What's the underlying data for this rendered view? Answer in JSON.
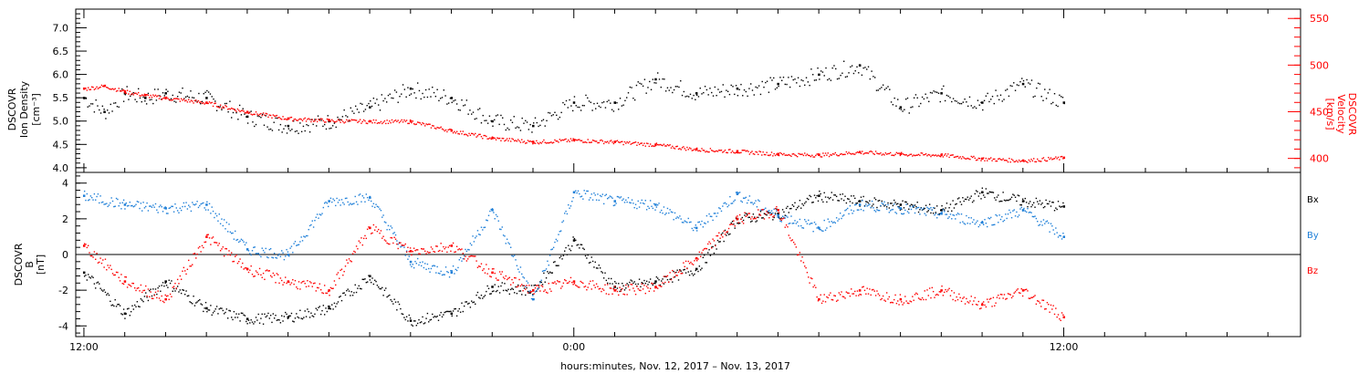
{
  "chart_data": [
    {
      "type": "scatter",
      "panel": "top",
      "ylabel_left": [
        "DSCOVR",
        "Ion Density",
        "[cm⁻³]"
      ],
      "ylabel_right": [
        "DSCOVR",
        "Velocity",
        "[km/s]"
      ],
      "ylim_left": [
        3.9,
        7.4
      ],
      "ylim_right": [
        385,
        560
      ],
      "yticks_left": [
        "4.0",
        "4.5",
        "5.0",
        "5.5",
        "6.0",
        "6.5",
        "7.0"
      ],
      "yticks_right": [
        "400",
        "450",
        "500",
        "550"
      ],
      "right_axis_color": "#ff0000",
      "series": [
        {
          "name": "density",
          "axis": "left",
          "color": "#000000",
          "hours": [
            0,
            0.5,
            1,
            1.5,
            2,
            3,
            4,
            5,
            6,
            7,
            8,
            9,
            10,
            11,
            12,
            13,
            14,
            15,
            16,
            17,
            18,
            19,
            20,
            21,
            22,
            23,
            24
          ],
          "values": [
            5.5,
            5.2,
            5.6,
            5.5,
            5.6,
            5.5,
            5.1,
            4.9,
            5.0,
            5.3,
            5.7,
            5.5,
            5.0,
            4.9,
            5.4,
            5.4,
            5.9,
            5.6,
            5.7,
            5.8,
            6.0,
            6.2,
            5.3,
            5.6,
            5.4,
            5.8,
            5.4
          ]
        },
        {
          "name": "velocity",
          "axis": "right",
          "color": "#ff0000",
          "hours": [
            0,
            0.5,
            1,
            1.5,
            2,
            3,
            4,
            5,
            6,
            7,
            8,
            9,
            10,
            11,
            12,
            13,
            14,
            15,
            16,
            17,
            18,
            19,
            20,
            21,
            22,
            23,
            24
          ],
          "values": [
            475,
            478,
            472,
            468,
            465,
            460,
            450,
            443,
            441,
            440,
            440,
            430,
            422,
            418,
            420,
            418,
            415,
            410,
            408,
            405,
            404,
            407,
            405,
            404,
            400,
            398,
            401
          ]
        }
      ]
    },
    {
      "type": "scatter",
      "panel": "bottom",
      "ylabel_left": [
        "DSCOVR",
        "B",
        "[nT]"
      ],
      "ylim": [
        -4.6,
        4.6
      ],
      "yticks": [
        "-4",
        "-2",
        "0",
        "2",
        "4"
      ],
      "zero_line": true,
      "series": [
        {
          "name": "Bx",
          "color": "#000000",
          "hours": [
            0,
            1,
            2,
            3,
            4,
            5,
            6,
            7,
            8,
            9,
            10,
            11,
            12,
            13,
            14,
            15,
            16,
            17,
            18,
            19,
            20,
            21,
            22,
            23,
            24
          ],
          "values": [
            -1.0,
            -3.3,
            -1.5,
            -3.0,
            -3.6,
            -3.5,
            -3.0,
            -1.2,
            -3.7,
            -3.3,
            -1.8,
            -2.0,
            0.8,
            -1.8,
            -1.5,
            -0.8,
            2.0,
            2.3,
            3.3,
            3.0,
            2.8,
            2.5,
            3.5,
            3.0,
            2.7
          ]
        },
        {
          "name": "By",
          "color": "#1e7fd8",
          "hours": [
            0,
            1,
            2,
            3,
            4,
            5,
            6,
            7,
            8,
            9,
            10,
            11,
            12,
            13,
            14,
            15,
            16,
            17,
            18,
            19,
            20,
            21,
            22,
            23,
            24
          ],
          "values": [
            3.3,
            2.8,
            2.6,
            2.8,
            0.3,
            0.0,
            3.0,
            3.2,
            -0.4,
            -1.0,
            2.5,
            -2.5,
            3.5,
            3.0,
            2.8,
            1.5,
            3.4,
            2.2,
            1.5,
            2.8,
            2.6,
            2.3,
            1.8,
            2.5,
            1.0
          ]
        },
        {
          "name": "Bz",
          "color": "#ff0000",
          "hours": [
            0,
            1,
            2,
            3,
            4,
            5,
            6,
            7,
            8,
            9,
            10,
            11,
            12,
            13,
            14,
            15,
            16,
            17,
            18,
            19,
            20,
            21,
            22,
            23,
            24
          ],
          "values": [
            0.5,
            -1.5,
            -2.5,
            1.0,
            -0.8,
            -1.5,
            -2.0,
            1.5,
            0.2,
            0.5,
            -1.0,
            -2.0,
            -1.5,
            -2.0,
            -1.8,
            -0.2,
            2.0,
            2.5,
            -2.5,
            -2.0,
            -2.5,
            -2.0,
            -2.8,
            -2.0,
            -3.5
          ]
        }
      ],
      "legend": [
        "Bx",
        "By",
        "Bz"
      ]
    }
  ],
  "xaxis": {
    "label": "hours:minutes, Nov. 12, 2017 – Nov. 13, 2017",
    "tick_labels": [
      {
        "hour": 0,
        "text": "12:00"
      },
      {
        "hour": 12,
        "text": "0:00"
      },
      {
        "hour": 24,
        "text": "12:00"
      }
    ],
    "range_hours": [
      -0.2,
      29.8
    ]
  }
}
